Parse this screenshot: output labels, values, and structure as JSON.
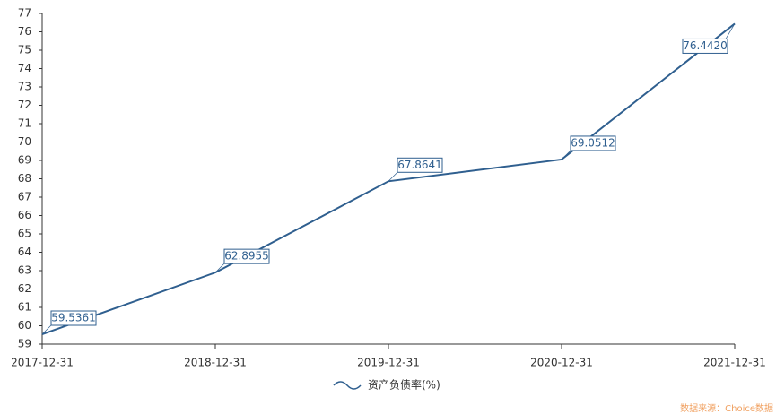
{
  "chart_data": {
    "type": "line",
    "categories": [
      "2017-12-31",
      "2018-12-31",
      "2019-12-31",
      "2020-12-31",
      "2021-12-31"
    ],
    "series": [
      {
        "name": "资产负债率(%)",
        "color": "#2f5f8f",
        "values": [
          59.5361,
          62.8955,
          67.8641,
          69.0512,
          76.442
        ],
        "value_labels": [
          "59.5361",
          "62.8955",
          "67.8641",
          "69.0512",
          "76.4420"
        ]
      }
    ],
    "ylim": [
      59,
      77
    ],
    "yticks": [
      59,
      60,
      61,
      62,
      63,
      64,
      65,
      66,
      67,
      68,
      69,
      70,
      71,
      72,
      73,
      74,
      75,
      76,
      77
    ],
    "source": "数据来源：Choice数据"
  }
}
